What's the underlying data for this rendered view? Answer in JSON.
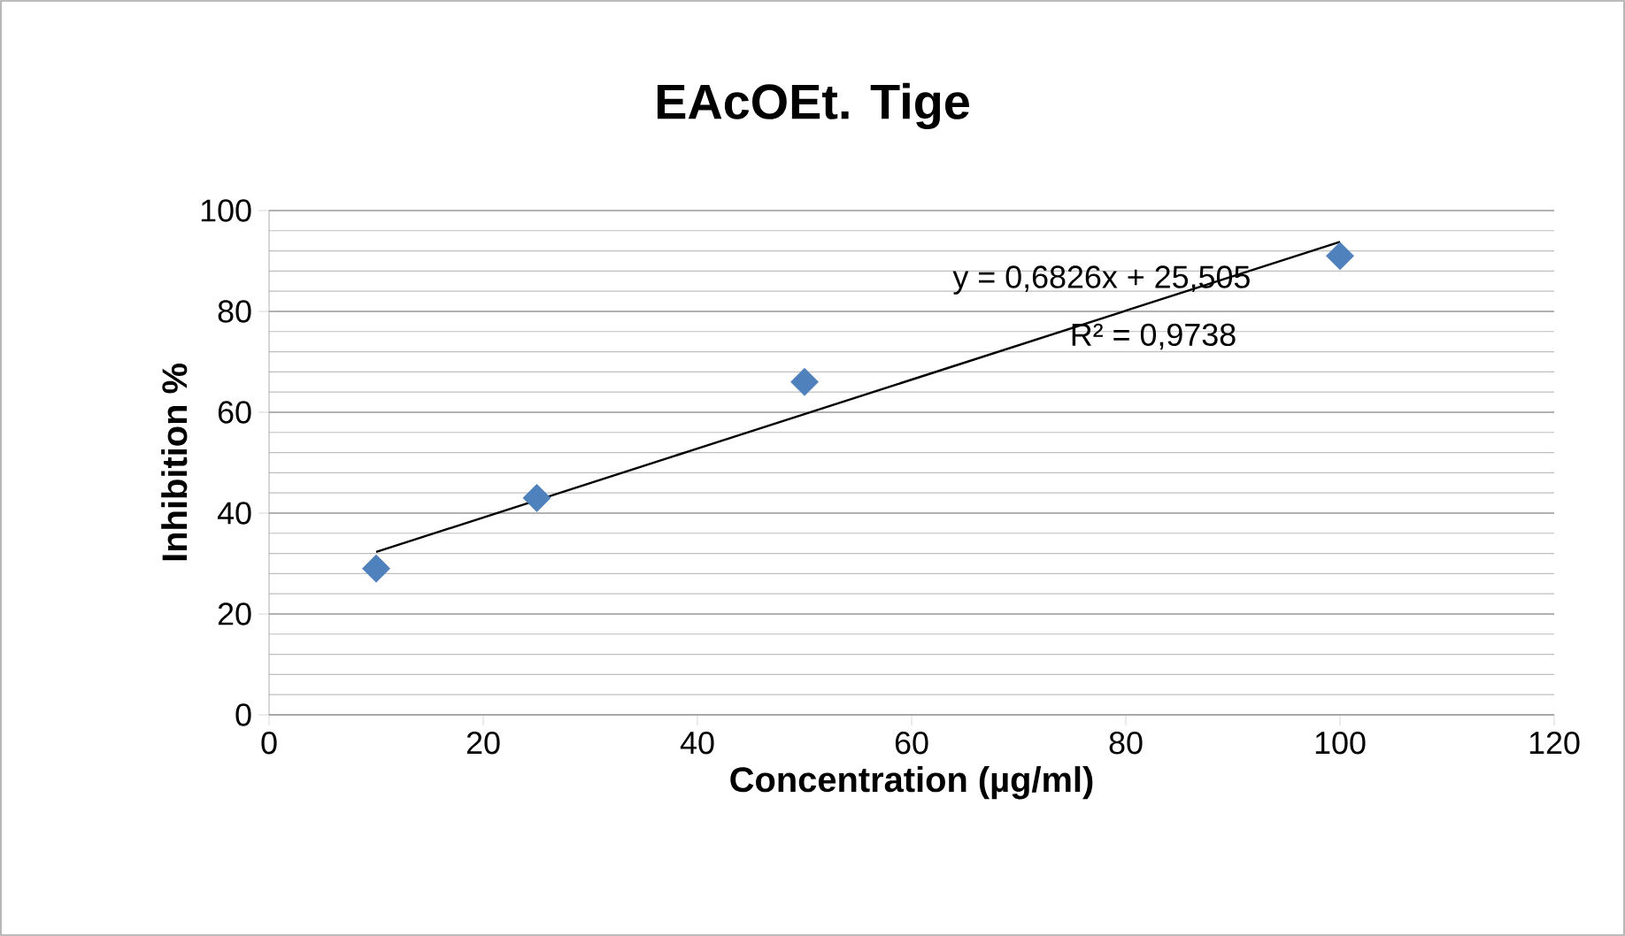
{
  "chart_data": {
    "type": "scatter",
    "title": "EAcOEt. Tige",
    "xlabel": "Concentration (µg/ml)",
    "ylabel": "Inhibition %",
    "x": [
      10,
      25,
      50,
      100
    ],
    "series": [
      {
        "color": "#4f81bd",
        "marker": "diamond",
        "values": [
          29,
          43,
          66,
          91
        ]
      },
      {
        "type": "line",
        "color": "#000000",
        "marker": "none",
        "line_style": "solid",
        "x": [
          10,
          100
        ],
        "values": [
          32.3,
          93.8
        ]
      }
    ],
    "annotations": [
      "y = 0,6826x + 25,505",
      "R² = 0,9738"
    ],
    "xlim": [
      0,
      120
    ],
    "xticks": [
      0,
      20,
      40,
      60,
      80,
      100,
      120
    ],
    "ylim": [
      0,
      100
    ],
    "yticks": [
      0,
      20,
      40,
      60,
      80,
      100
    ],
    "grid": "y"
  }
}
